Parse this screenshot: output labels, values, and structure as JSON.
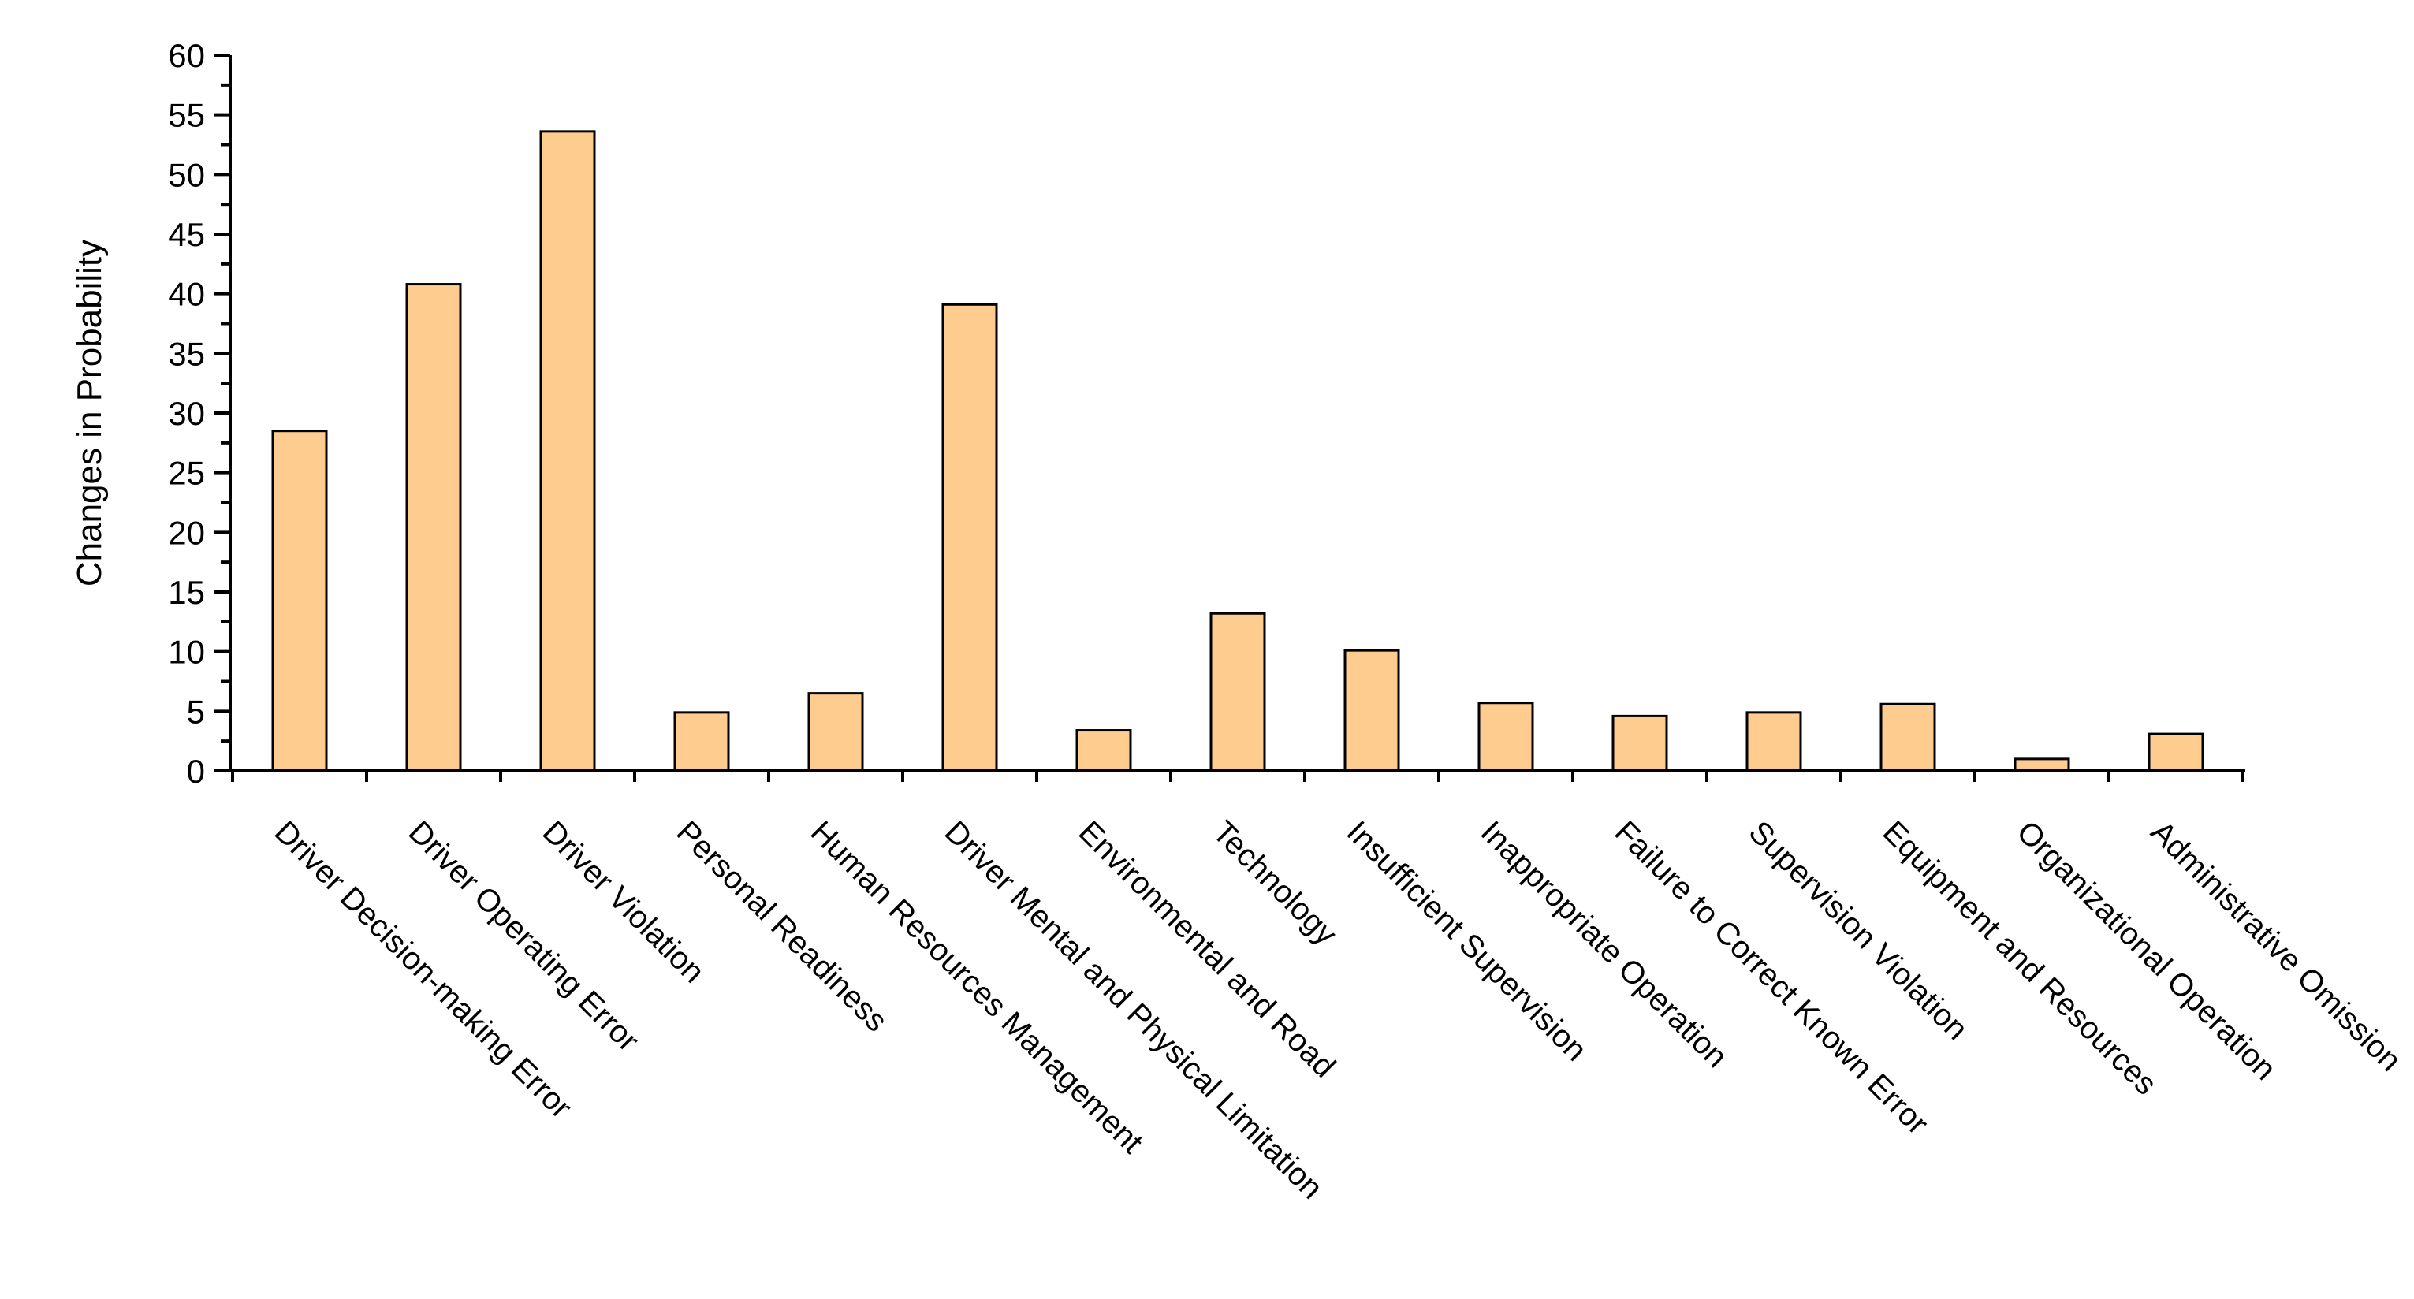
{
  "chart_data": {
    "type": "bar",
    "title": "",
    "xlabel": "",
    "ylabel": "Changes in Probability",
    "ylim": [
      0,
      60
    ],
    "yticks": [
      0,
      5,
      10,
      15,
      20,
      25,
      30,
      35,
      40,
      45,
      50,
      55,
      60
    ],
    "ytick_labels": [
      "0",
      "5",
      "10",
      "15",
      "20",
      "25",
      "30",
      "35",
      "40",
      "45",
      "50",
      "55",
      "60"
    ],
    "grid": false,
    "legend": "none",
    "bar_color": "#FFCC8F",
    "bar_edge_color": "#000000",
    "categories": [
      "Driver Decision-making Error",
      "Driver Operating Error",
      "Driver Violation",
      "Personal Readiness",
      "Human Resources Management",
      "Driver Mental and Physical Limitation",
      "Environmental and Road",
      "Technology",
      "Insufficient Supervision",
      "Inappropriate Operation",
      "Failure to Correct Known Error",
      "Supervision Violation",
      "Equipment and Resources",
      "Organizational Operation",
      "Administrative Omission"
    ],
    "values": [
      28.5,
      40.8,
      53.6,
      4.9,
      6.5,
      39.1,
      3.4,
      13.2,
      10.1,
      5.7,
      4.6,
      4.9,
      5.6,
      1.0,
      3.1
    ]
  }
}
